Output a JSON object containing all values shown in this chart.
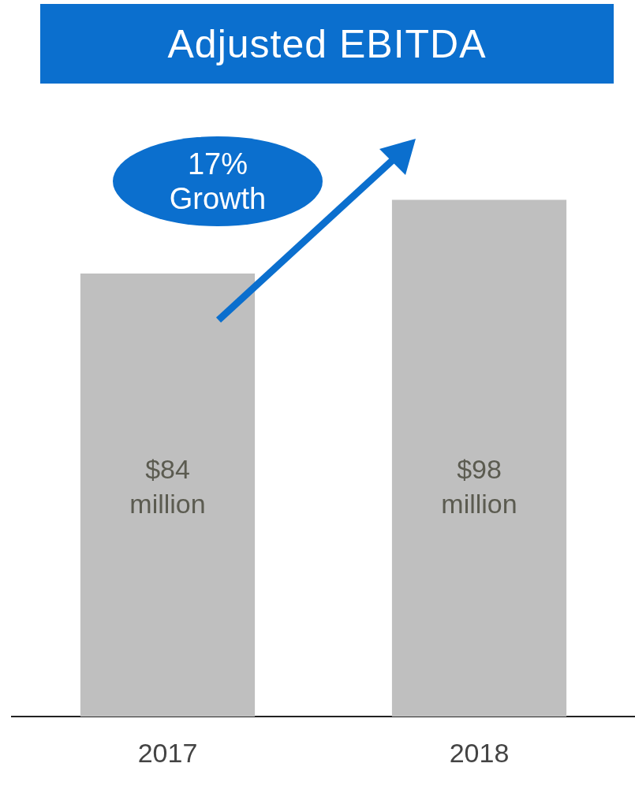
{
  "chart_data": {
    "type": "bar",
    "title": "Adjusted EBITDA",
    "categories": [
      "2017",
      "2018"
    ],
    "values": [
      84,
      98
    ],
    "value_labels": [
      "$84 million",
      "$98 million"
    ],
    "color": "#bfbfbf",
    "annotations": [
      "17% Growth"
    ],
    "grid": false,
    "legend": false,
    "tick_labels": "x"
  }
}
